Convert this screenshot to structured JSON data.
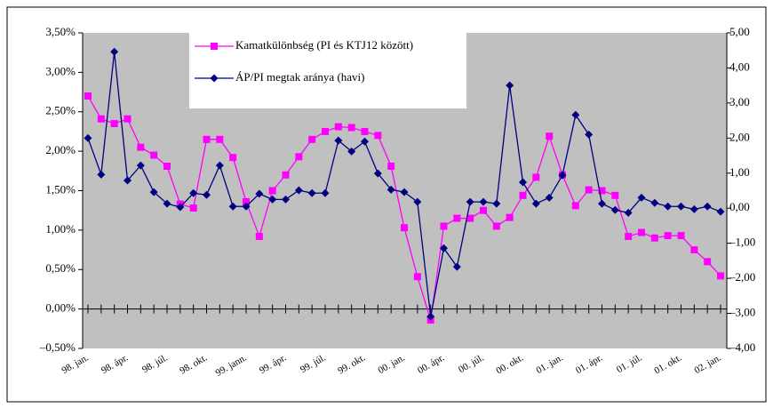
{
  "chart_data": {
    "type": "line",
    "categories": [
      "98. jan.",
      null,
      null,
      "98. ápr.",
      null,
      null,
      "98. júl.",
      null,
      null,
      "98. okt.",
      null,
      null,
      "99. jann.",
      null,
      null,
      "99. ápr.",
      null,
      null,
      "99. júl.",
      null,
      null,
      "99. okt.",
      null,
      null,
      "00. jan.",
      null,
      null,
      "00. ápr.",
      null,
      null,
      "00. júl.",
      null,
      null,
      "00. okt.",
      null,
      null,
      "01. jan.",
      null,
      null,
      "01. ápr.",
      null,
      null,
      "01. júl.",
      null,
      null,
      "01. okt.",
      null,
      null,
      "02. jan."
    ],
    "series": [
      {
        "name": "Kamatkülönbség (PI és KTJ12 között)",
        "color": "#ff00ff",
        "marker": "square",
        "axis": "y",
        "values": [
          2.7,
          2.41,
          2.35,
          2.41,
          2.05,
          1.95,
          1.81,
          1.33,
          1.28,
          2.15,
          2.15,
          1.92,
          1.36,
          0.92,
          1.5,
          1.7,
          1.93,
          2.15,
          2.25,
          2.31,
          2.3,
          2.25,
          2.2,
          1.81,
          1.03,
          0.41,
          -0.14,
          1.05,
          1.15,
          1.15,
          1.25,
          1.05,
          1.16,
          1.44,
          1.67,
          2.19,
          1.7,
          1.31,
          1.51,
          1.5,
          1.44,
          0.92,
          0.97,
          0.9,
          0.93,
          0.93,
          0.75,
          0.6,
          0.42
        ]
      },
      {
        "name": "ÁP/PI megtak aránya (havi)",
        "color": "#000080",
        "marker": "diamond",
        "axis": "y2",
        "values": [
          2.0,
          0.96,
          4.46,
          0.79,
          1.22,
          0.46,
          0.13,
          0.03,
          0.43,
          0.38,
          1.22,
          0.05,
          0.05,
          0.41,
          0.25,
          0.25,
          0.51,
          0.43,
          0.43,
          1.93,
          1.62,
          1.9,
          0.99,
          0.53,
          0.46,
          0.18,
          -3.09,
          -1.14,
          -1.67,
          0.18,
          0.18,
          0.13,
          3.5,
          0.74,
          0.13,
          0.3,
          0.94,
          2.66,
          2.1,
          0.13,
          -0.05,
          -0.13,
          0.3,
          0.15,
          0.05,
          0.05,
          -0.03,
          0.05,
          -0.1
        ]
      }
    ],
    "ylim": [
      -0.5,
      3.5
    ],
    "yticks": [
      {
        "value": 3.5,
        "label": "3,50%"
      },
      {
        "value": 3.0,
        "label": "3,00%"
      },
      {
        "value": 2.5,
        "label": "2,50%"
      },
      {
        "value": 2.0,
        "label": "2,00%"
      },
      {
        "value": 1.5,
        "label": "1,50%"
      },
      {
        "value": 1.0,
        "label": "1,00%"
      },
      {
        "value": 0.5,
        "label": "0,50%"
      },
      {
        "value": 0,
        "label": "0,00%"
      },
      {
        "value": -0.5,
        "label": "–0,50%"
      }
    ],
    "y2lim": [
      -4,
      5
    ],
    "y2ticks": [
      {
        "value": 5,
        "label": "5,00"
      },
      {
        "value": 4,
        "label": "4,00"
      },
      {
        "value": 3,
        "label": "3,00"
      },
      {
        "value": 2,
        "label": "2,00"
      },
      {
        "value": 1,
        "label": "1,00"
      },
      {
        "value": 0,
        "label": "0,00"
      },
      {
        "value": -1,
        "label": "–1,00"
      },
      {
        "value": -2,
        "label": "–2,00"
      },
      {
        "value": -3,
        "label": "–3,00"
      },
      {
        "value": -4,
        "label": "–4,00"
      }
    ],
    "grid": false,
    "legend": "top-left"
  }
}
